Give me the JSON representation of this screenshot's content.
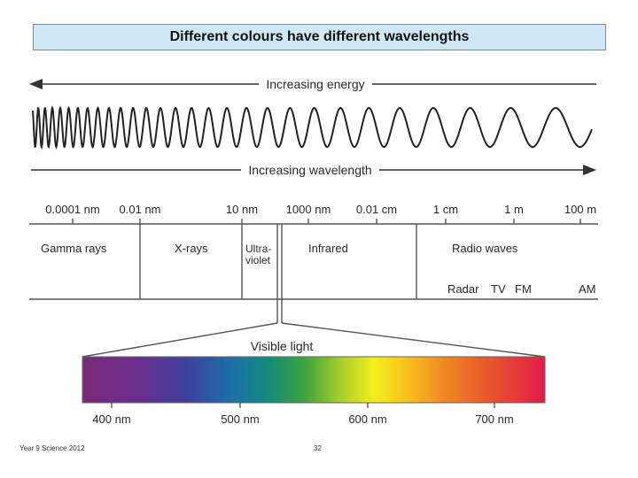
{
  "title": "Different colours have different wavelengths",
  "arrows": {
    "energy_label": "Increasing energy",
    "wavelength_label": "Increasing wavelength"
  },
  "scale_ticks": [
    "0.0001 nm",
    "0.01 nm",
    "10 nm",
    "1000 nm",
    "0.01 cm",
    "1 cm",
    "1 m",
    "100 m"
  ],
  "bands": {
    "gamma": "Gamma rays",
    "xrays": "X-rays",
    "uv_line1": "Ultra-",
    "uv_line2": "violet",
    "infrared": "Infrared",
    "radio": "Radio waves",
    "radar": "Radar",
    "tv": "TV",
    "fm": "FM",
    "am": "AM"
  },
  "visible": {
    "label": "Visible light",
    "ticks": [
      "400 nm",
      "500 nm",
      "600 nm",
      "700 nm"
    ]
  },
  "footer": {
    "left": "Year 9 Science 2012",
    "page": "32"
  },
  "colors": {
    "title_bg": "#cfe8f6",
    "line": "#444444"
  }
}
